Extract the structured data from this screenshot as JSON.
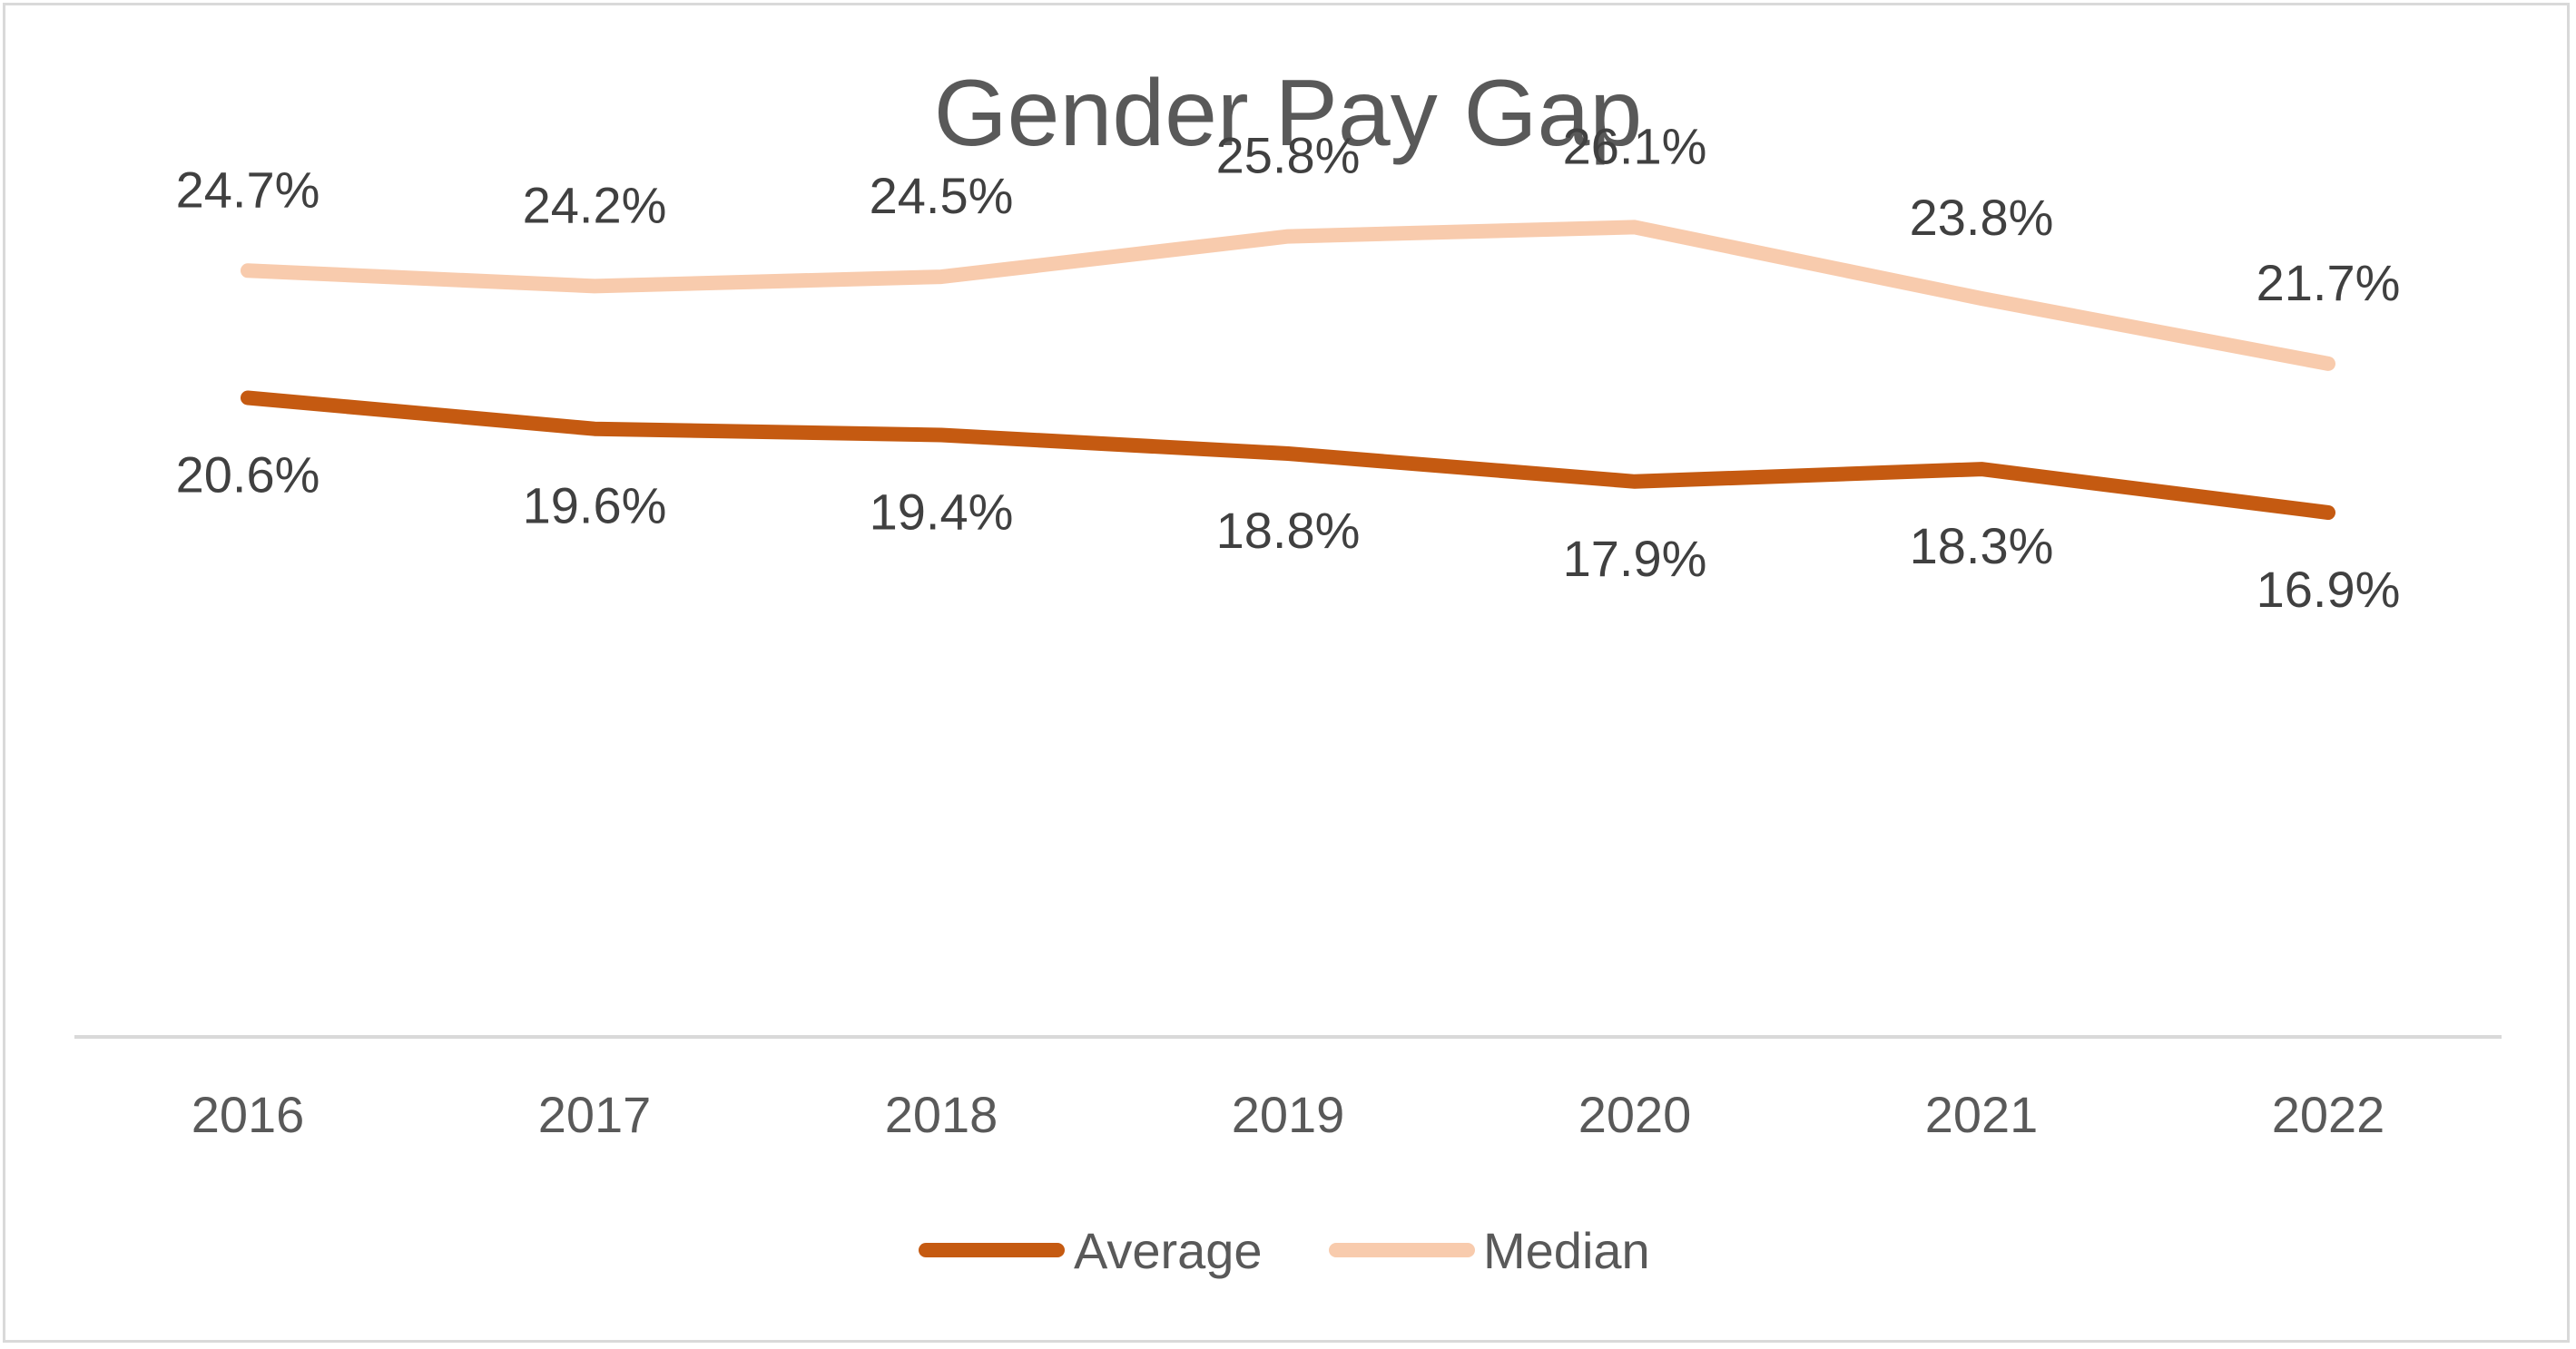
{
  "chart_data": {
    "type": "line",
    "title": "Gender Pay Gap",
    "xlabel": "",
    "ylabel": "",
    "categories": [
      "2016",
      "2017",
      "2018",
      "2019",
      "2020",
      "2021",
      "2022"
    ],
    "ylim": [
      0,
      30
    ],
    "grid": false,
    "legend_position": "bottom",
    "series": [
      {
        "name": "Average",
        "color": "#c55a11",
        "values": [
          20.6,
          19.6,
          19.4,
          18.8,
          17.9,
          18.3,
          16.9
        ],
        "labels": [
          "20.6%",
          "19.6%",
          "19.4%",
          "18.8%",
          "17.9%",
          "18.3%",
          "16.9%"
        ],
        "label_placement": "below"
      },
      {
        "name": "Median",
        "color": "#f8cbad",
        "values": [
          24.7,
          24.2,
          24.5,
          25.8,
          26.1,
          23.8,
          21.7
        ],
        "labels": [
          "24.7%",
          "24.2%",
          "24.5%",
          "25.8%",
          "26.1%",
          "23.8%",
          "21.7%"
        ],
        "label_placement": "above"
      }
    ]
  }
}
